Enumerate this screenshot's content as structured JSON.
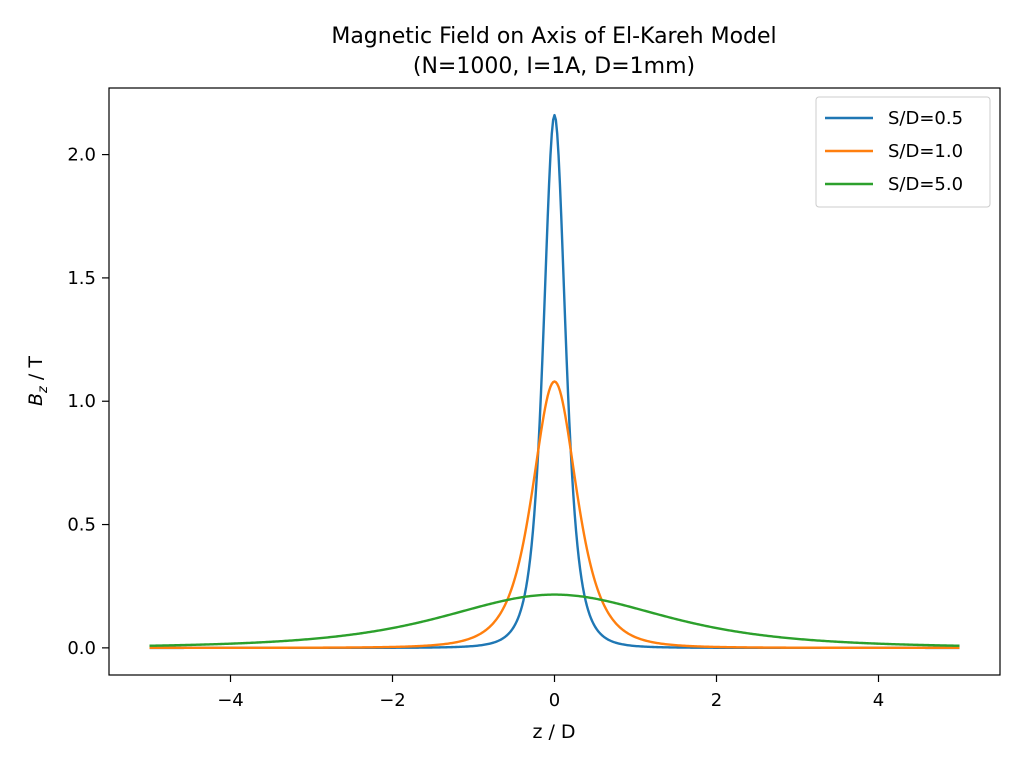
{
  "chart_data": {
    "type": "line",
    "title": "Magnetic Field on Axis of El-Kareh Model",
    "subtitle": "(N=1000, I=1A, D=1mm)",
    "xlabel": "z / D",
    "ylabel": {
      "base": "B",
      "sub": "z",
      "rest": " / T"
    },
    "xlim": [
      -5.5,
      5.5
    ],
    "ylim": [
      -0.11,
      2.27
    ],
    "xticks": [
      -4,
      -2,
      0,
      2,
      4
    ],
    "xtick_labels": [
      "−4",
      "−2",
      "0",
      "2",
      "4"
    ],
    "yticks": [
      0.0,
      0.5,
      1.0,
      1.5,
      2.0
    ],
    "ytick_labels": [
      "0.0",
      "0.5",
      "1.0",
      "1.5",
      "2.0"
    ],
    "x_range": [
      -5,
      5
    ],
    "grid": false,
    "legend_position": "top-right",
    "series": [
      {
        "name": "S/D=0.5",
        "color": "#1f77b4",
        "peak": 2.16,
        "half_width": 0.25
      },
      {
        "name": "S/D=1.0",
        "color": "#ff7f0e",
        "peak": 1.08,
        "half_width": 0.5
      },
      {
        "name": "S/D=5.0",
        "color": "#2ca02c",
        "peak": 0.216,
        "half_width": 2.5
      }
    ]
  }
}
